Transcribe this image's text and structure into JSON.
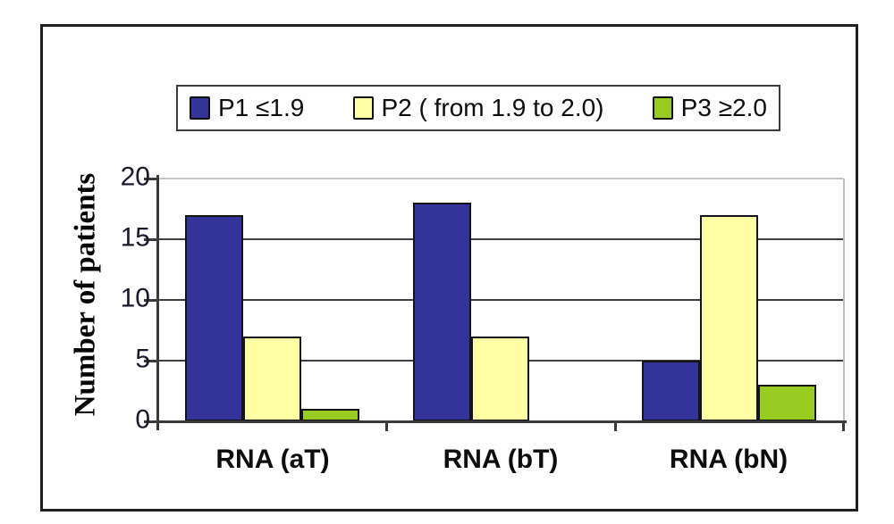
{
  "chart_data": {
    "type": "bar",
    "title": "",
    "xlabel": "",
    "ylabel": "Number of patients",
    "categories": [
      "RNA (aT)",
      "RNA (bT)",
      "RNA (bN)"
    ],
    "series": [
      {
        "name": "P1 ≤1.9",
        "color": "#333399",
        "values": [
          17,
          18,
          5
        ]
      },
      {
        "name": "P2 ( from 1.9 to 2.0)",
        "color": "#ffffa3",
        "values": [
          7,
          7,
          17
        ]
      },
      {
        "name": "P3  ≥2.0",
        "color": "#99cc22",
        "values": [
          1,
          0,
          3
        ]
      }
    ],
    "ylim": [
      0,
      20
    ],
    "yticks": [
      0,
      5,
      10,
      15,
      20
    ],
    "grid": true,
    "legend_position": "top-center",
    "colors": {
      "axis": "#3a3a3a",
      "gridline_dark": "#3f3f3f",
      "gridline_light": "#c4c4c4",
      "frame_border": "#1f1f1f",
      "background": "#ffffff"
    }
  }
}
